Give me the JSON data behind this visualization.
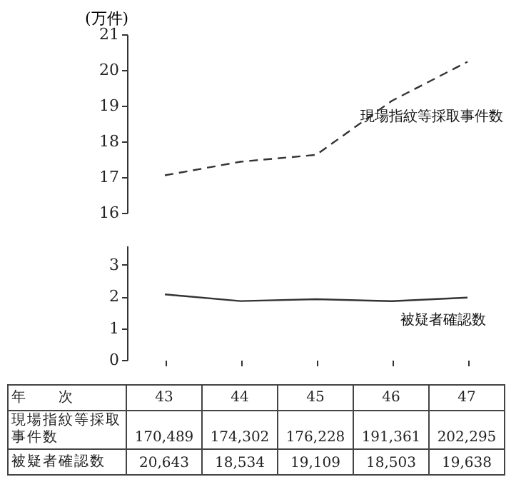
{
  "chart_data": [
    {
      "type": "line",
      "ylabel": "(万件)",
      "categories": [
        "43",
        "44",
        "45",
        "46",
        "47"
      ],
      "ylim": [
        16,
        21
      ],
      "yticks": [
        16,
        17,
        18,
        19,
        20,
        21
      ],
      "line_style": "dashed",
      "tick_labels": "y",
      "legend": false,
      "series": [
        {
          "name": "現場指紋等採取事件数",
          "color": "#333333",
          "values": [
            17.0489,
            17.4302,
            17.6228,
            19.1361,
            20.2295
          ]
        }
      ]
    },
    {
      "type": "line",
      "xlabel": "年　　次",
      "categories": [
        "43",
        "44",
        "45",
        "46",
        "47"
      ],
      "ylim": [
        0,
        3.6
      ],
      "yticks": [
        0,
        1,
        2,
        3
      ],
      "line_style": "solid",
      "legend": false,
      "series": [
        {
          "name": "被疑者確認数",
          "color": "#333333",
          "values": [
            2.0643,
            1.8534,
            1.9109,
            1.8503,
            1.9638
          ]
        }
      ]
    },
    {
      "type": "other",
      "annotations": [
        "現場指紋等採取事件数",
        "170,489",
        "174,302",
        "176,228",
        "191,361",
        "202,295",
        "被疑者確認数",
        "20,643",
        "18,534",
        "19,109",
        "18,503",
        "19,638"
      ]
    }
  ]
}
